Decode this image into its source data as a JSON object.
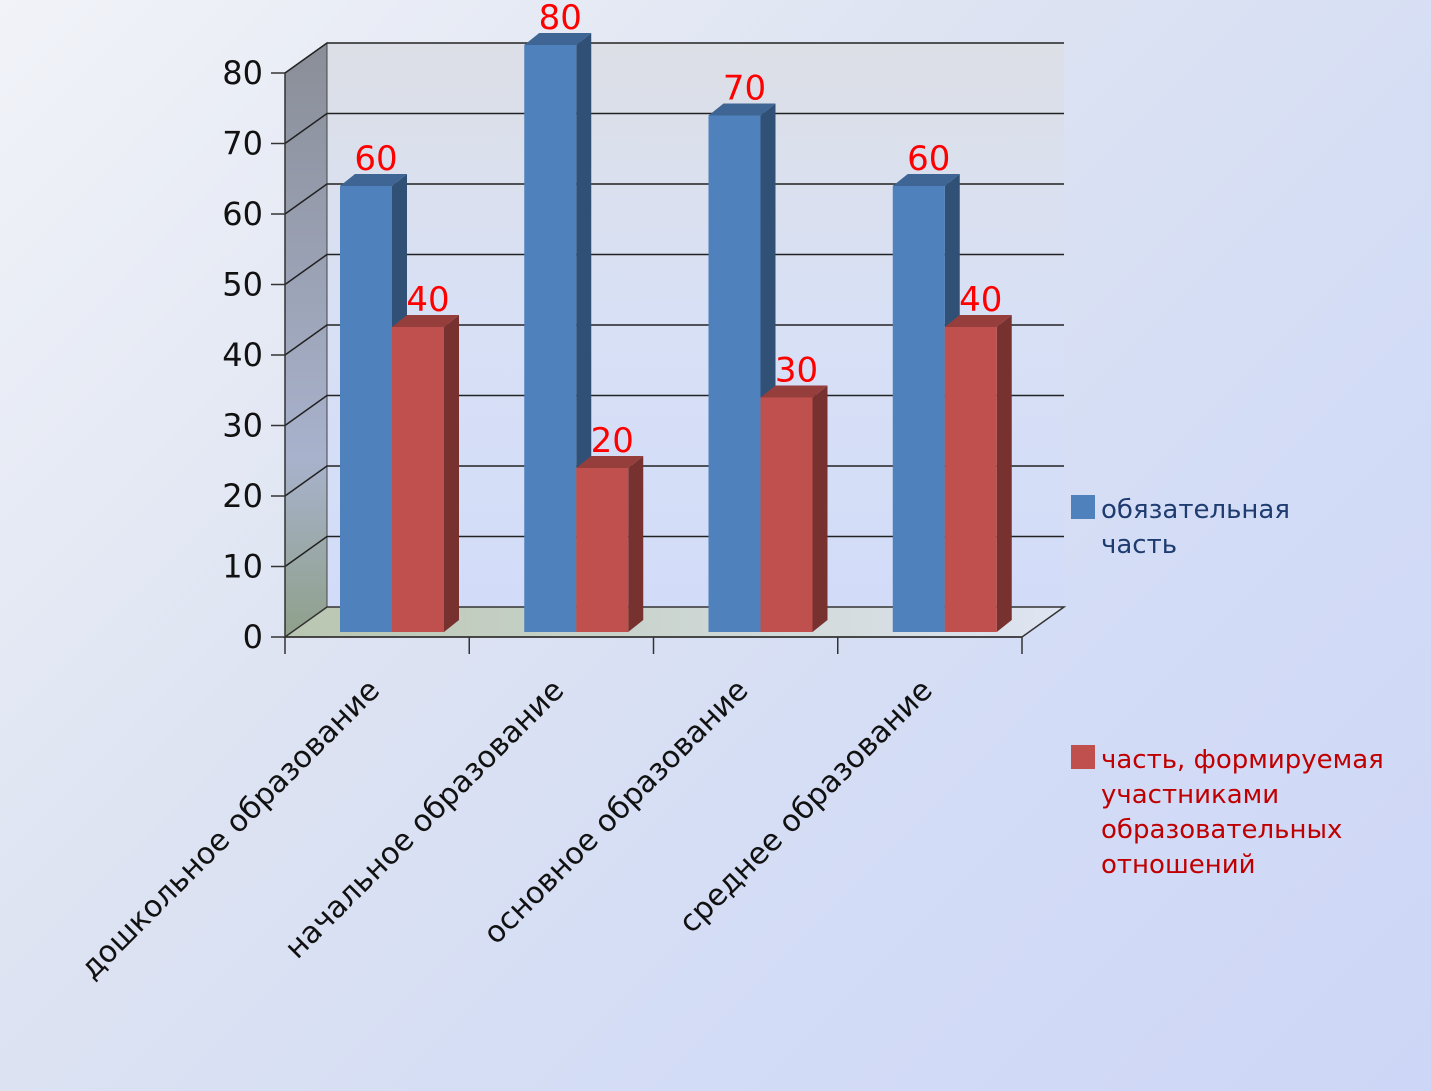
{
  "chart_data": {
    "type": "bar",
    "categories": [
      "дошкольное образование",
      "начальное образование",
      "основное образование",
      "среднее образование"
    ],
    "series": [
      {
        "name": "обязательная часть",
        "values": [
          60,
          80,
          70,
          60
        ],
        "color": "#4f81bd",
        "text_color": "#1f3c70"
      },
      {
        "name": "часть, формируемая участниками образовательных отношений",
        "values": [
          40,
          20,
          30,
          40
        ],
        "color": "#c0504d",
        "text_color": "#c00000"
      }
    ],
    "legend_lines": [
      [
        "обязательная",
        "часть"
      ],
      [
        "часть, формируемая",
        "участниками",
        "образовательных",
        "отношений"
      ]
    ],
    "yticks": [
      "0",
      "10",
      "20",
      "30",
      "40",
      "50",
      "60",
      "70",
      "80"
    ],
    "ylim": [
      0,
      80
    ],
    "grid": true,
    "legend_position": "right",
    "data_label_color": "#ff0000"
  }
}
